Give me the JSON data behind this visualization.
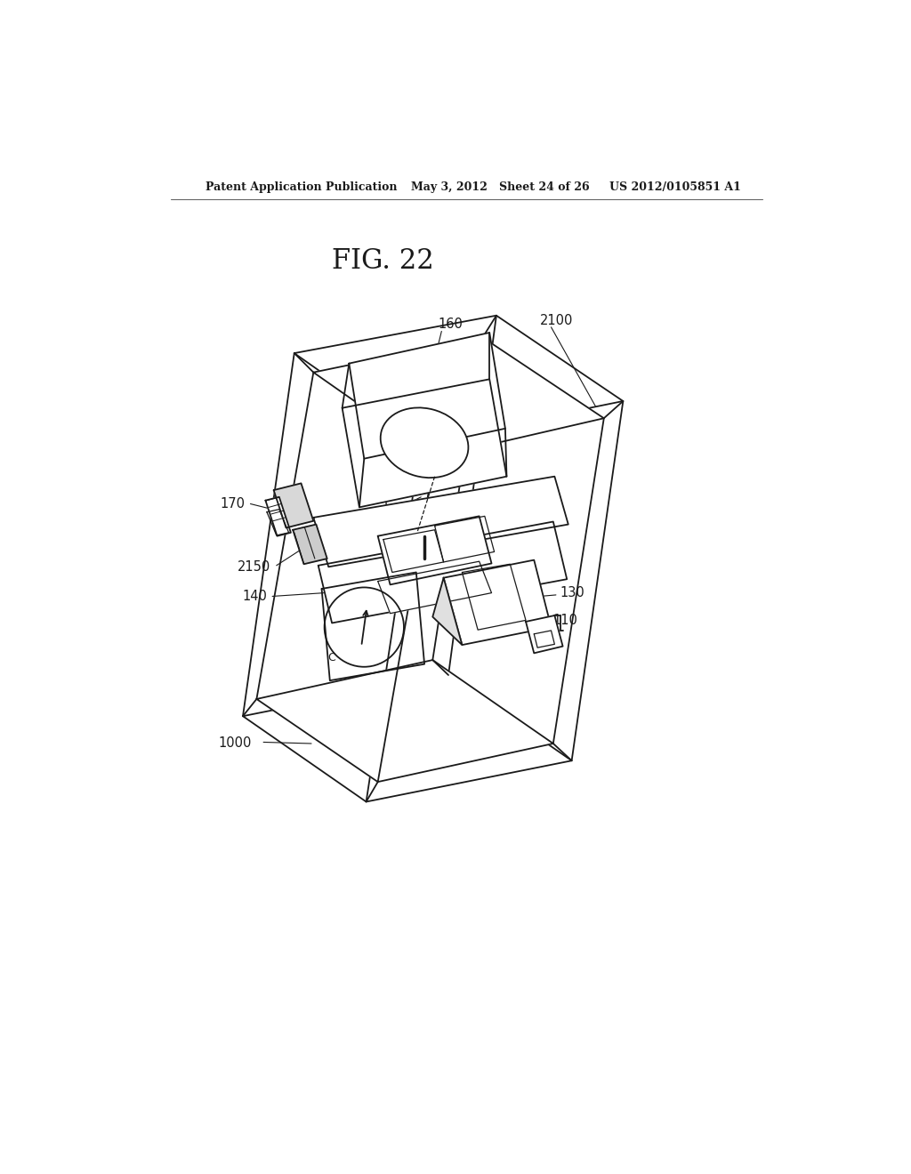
{
  "background_color": "#ffffff",
  "line_color": "#1a1a1a",
  "line_width": 1.3,
  "title": "FIG. 22",
  "header_left": "Patent Application Publication",
  "header_mid": "May 3, 2012   Sheet 24 of 26",
  "header_right": "US 2012/0105851 A1"
}
